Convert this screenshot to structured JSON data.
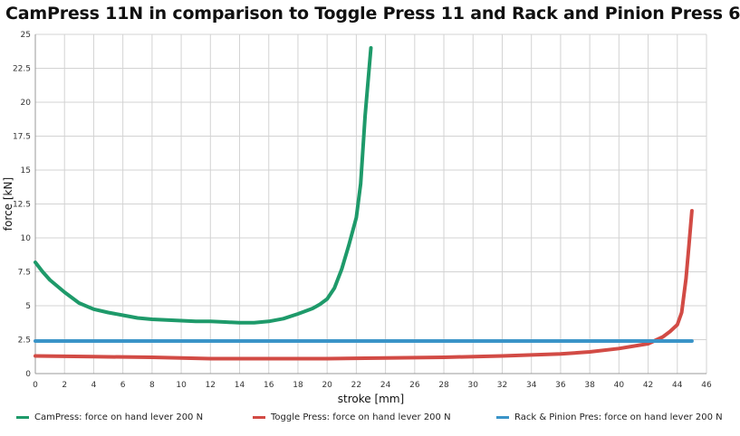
{
  "chart_data": {
    "type": "line",
    "title": "CamPress 11N in comparison to Toggle Press 11 and Rack and Pinion Press 6",
    "xlabel": "stroke [mm]",
    "ylabel": "force [kN]",
    "xlim": [
      0,
      46
    ],
    "ylim": [
      0,
      25
    ],
    "xticks": [
      "0",
      "2",
      "4",
      "6",
      "8",
      "10",
      "12",
      "14",
      "16",
      "18",
      "20",
      "22",
      "24",
      "26",
      "28",
      "30",
      "32",
      "34",
      "36",
      "38",
      "40",
      "42",
      "44",
      "46"
    ],
    "yticks": [
      "0",
      "2.5",
      "5",
      "7.5",
      "10",
      "12.5",
      "15",
      "17.5",
      "20",
      "22.5",
      "25"
    ],
    "grid": true,
    "legend_position": "bottom",
    "series": [
      {
        "name": "CamPress: force on hand lever 200 N",
        "color": "#1e9a6a",
        "x": [
          0,
          0.5,
          1,
          2,
          3,
          4,
          5,
          6,
          7,
          8,
          9,
          10,
          11,
          12,
          13,
          14,
          15,
          16,
          17,
          18,
          19,
          19.5,
          20,
          20.5,
          21,
          21.5,
          22,
          22.3,
          22.6,
          23
        ],
        "y": [
          8.2,
          7.5,
          6.9,
          6.0,
          5.2,
          4.75,
          4.5,
          4.3,
          4.1,
          4.0,
          3.95,
          3.9,
          3.85,
          3.85,
          3.8,
          3.75,
          3.75,
          3.85,
          4.05,
          4.4,
          4.8,
          5.1,
          5.5,
          6.3,
          7.7,
          9.5,
          11.5,
          14.0,
          19.0,
          24.0
        ]
      },
      {
        "name": "Toggle Press: force on hand lever 200 N",
        "color": "#d24b45",
        "x": [
          0,
          4,
          8,
          12,
          16,
          20,
          24,
          28,
          32,
          36,
          38,
          40,
          42,
          43,
          43.5,
          44,
          44.3,
          44.6,
          44.8,
          45
        ],
        "y": [
          1.3,
          1.25,
          1.2,
          1.1,
          1.1,
          1.1,
          1.15,
          1.2,
          1.3,
          1.45,
          1.6,
          1.85,
          2.2,
          2.7,
          3.1,
          3.6,
          4.5,
          7.0,
          9.5,
          12.0
        ]
      },
      {
        "name": "Rack & Pinion Pres: force on hand lever 200 N",
        "color": "#3a94c8",
        "x": [
          0,
          45
        ],
        "y": [
          2.4,
          2.4
        ]
      }
    ]
  }
}
